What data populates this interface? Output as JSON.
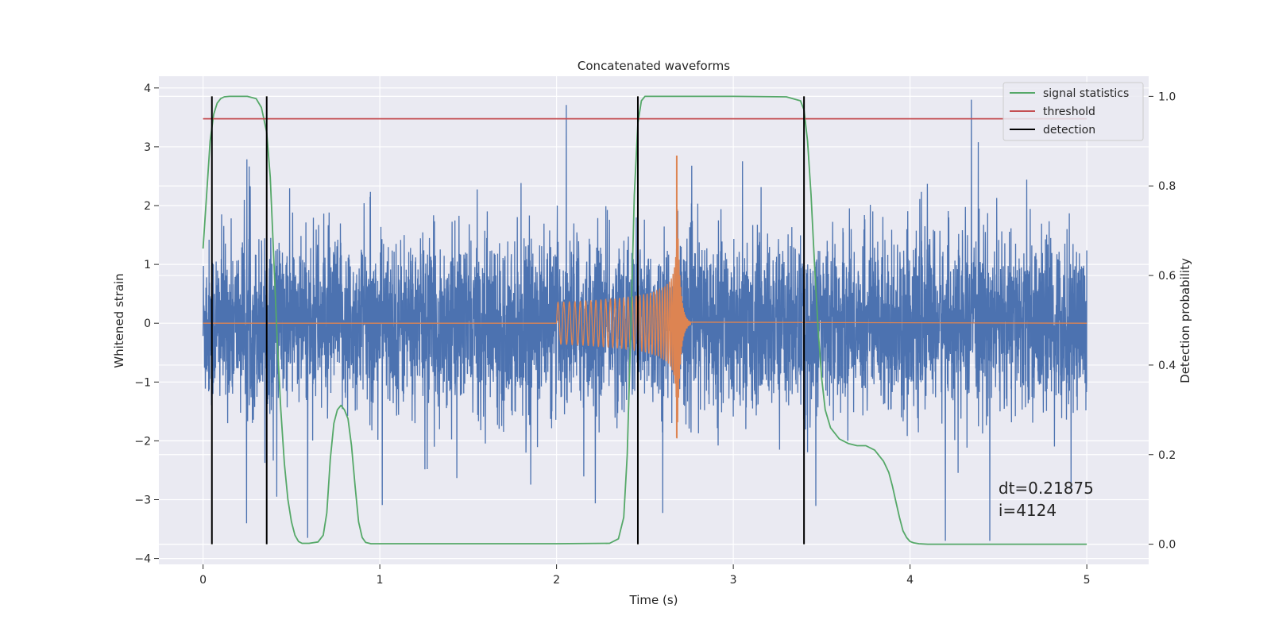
{
  "chart_data": {
    "type": "line",
    "title": "Concatenated waveforms",
    "xlabel": "Time (s)",
    "ylabel": "Whitened strain",
    "ylabel_right": "Detection probability",
    "xlim": [
      -0.25,
      5.35
    ],
    "ylim": [
      -4.1,
      4.2
    ],
    "ylim_right": [
      -0.045,
      1.045
    ],
    "x_ticks": [
      0,
      1,
      2,
      3,
      4,
      5
    ],
    "x_tick_labels": [
      "0",
      "1",
      "2",
      "3",
      "4",
      "5"
    ],
    "y_ticks": [
      -4,
      -3,
      -2,
      -1,
      0,
      1,
      2,
      3,
      4
    ],
    "y_tick_labels": [
      "−4",
      "−3",
      "−2",
      "−1",
      "0",
      "1",
      "2",
      "3",
      "4"
    ],
    "y_right_ticks": [
      0.0,
      0.2,
      0.4,
      0.6,
      0.8,
      1.0
    ],
    "y_right_tick_labels": [
      "0.0",
      "0.2",
      "0.4",
      "0.6",
      "0.8",
      "1.0"
    ],
    "grid": true,
    "legend_position": "top-right",
    "noise": {
      "color": "#4c72b0",
      "t_start": 0.0,
      "t_end": 5.0,
      "sigma": 0.7,
      "peak_max": 3.8,
      "peak_min": -3.7
    },
    "chirp": {
      "color": "#dd8452",
      "t_start": 2.0,
      "t_merger": 2.68,
      "t_end": 5.0,
      "peak_max": 2.85,
      "peak_min": -1.95
    },
    "series": [
      {
        "name": "signal statistics",
        "color": "#55a868",
        "axis": "right",
        "x": [
          0.0,
          0.02,
          0.04,
          0.06,
          0.08,
          0.1,
          0.12,
          0.15,
          0.2,
          0.25,
          0.3,
          0.33,
          0.36,
          0.38,
          0.4,
          0.42,
          0.44,
          0.46,
          0.48,
          0.5,
          0.52,
          0.54,
          0.56,
          0.6,
          0.65,
          0.68,
          0.7,
          0.72,
          0.74,
          0.76,
          0.78,
          0.8,
          0.82,
          0.84,
          0.86,
          0.88,
          0.9,
          0.92,
          0.95,
          1.0,
          1.5,
          2.0,
          2.3,
          2.35,
          2.38,
          2.4,
          2.42,
          2.44,
          2.46,
          2.48,
          2.5,
          2.55,
          2.6,
          3.0,
          3.3,
          3.38,
          3.4,
          3.42,
          3.44,
          3.46,
          3.48,
          3.5,
          3.52,
          3.55,
          3.6,
          3.65,
          3.7,
          3.75,
          3.8,
          3.85,
          3.88,
          3.9,
          3.92,
          3.94,
          3.96,
          3.98,
          4.0,
          4.02,
          4.05,
          4.1,
          4.5,
          5.0
        ],
        "y": [
          0.66,
          0.78,
          0.9,
          0.96,
          0.985,
          0.995,
          0.999,
          1.0,
          1.0,
          1.0,
          0.995,
          0.975,
          0.92,
          0.82,
          0.64,
          0.45,
          0.3,
          0.18,
          0.1,
          0.05,
          0.02,
          0.006,
          0.002,
          0.002,
          0.005,
          0.02,
          0.07,
          0.19,
          0.27,
          0.3,
          0.31,
          0.3,
          0.28,
          0.22,
          0.13,
          0.05,
          0.015,
          0.004,
          0.001,
          0.001,
          0.001,
          0.001,
          0.002,
          0.012,
          0.06,
          0.2,
          0.48,
          0.78,
          0.94,
          0.99,
          1.0,
          1.0,
          1.0,
          1.0,
          0.999,
          0.99,
          0.97,
          0.9,
          0.78,
          0.62,
          0.48,
          0.37,
          0.3,
          0.26,
          0.235,
          0.225,
          0.22,
          0.22,
          0.21,
          0.185,
          0.16,
          0.13,
          0.095,
          0.06,
          0.03,
          0.015,
          0.006,
          0.003,
          0.001,
          0.0,
          0.0,
          0.0
        ]
      },
      {
        "name": "threshold",
        "color": "#c44e52",
        "axis": "right",
        "x": [
          0.0,
          5.0
        ],
        "y": [
          0.95,
          0.95
        ]
      },
      {
        "name": "detection",
        "color": "#000000",
        "axis": "right",
        "type": "vlines",
        "x": [
          0.05,
          0.36,
          2.46,
          3.4
        ],
        "ymin": 0.0,
        "ymax": 1.0
      }
    ],
    "annotations": [
      {
        "text": "dt=0.21875",
        "x": 4.5,
        "y": -2.9
      },
      {
        "text": " i=4124",
        "x": 4.5,
        "y": -3.28
      }
    ]
  }
}
